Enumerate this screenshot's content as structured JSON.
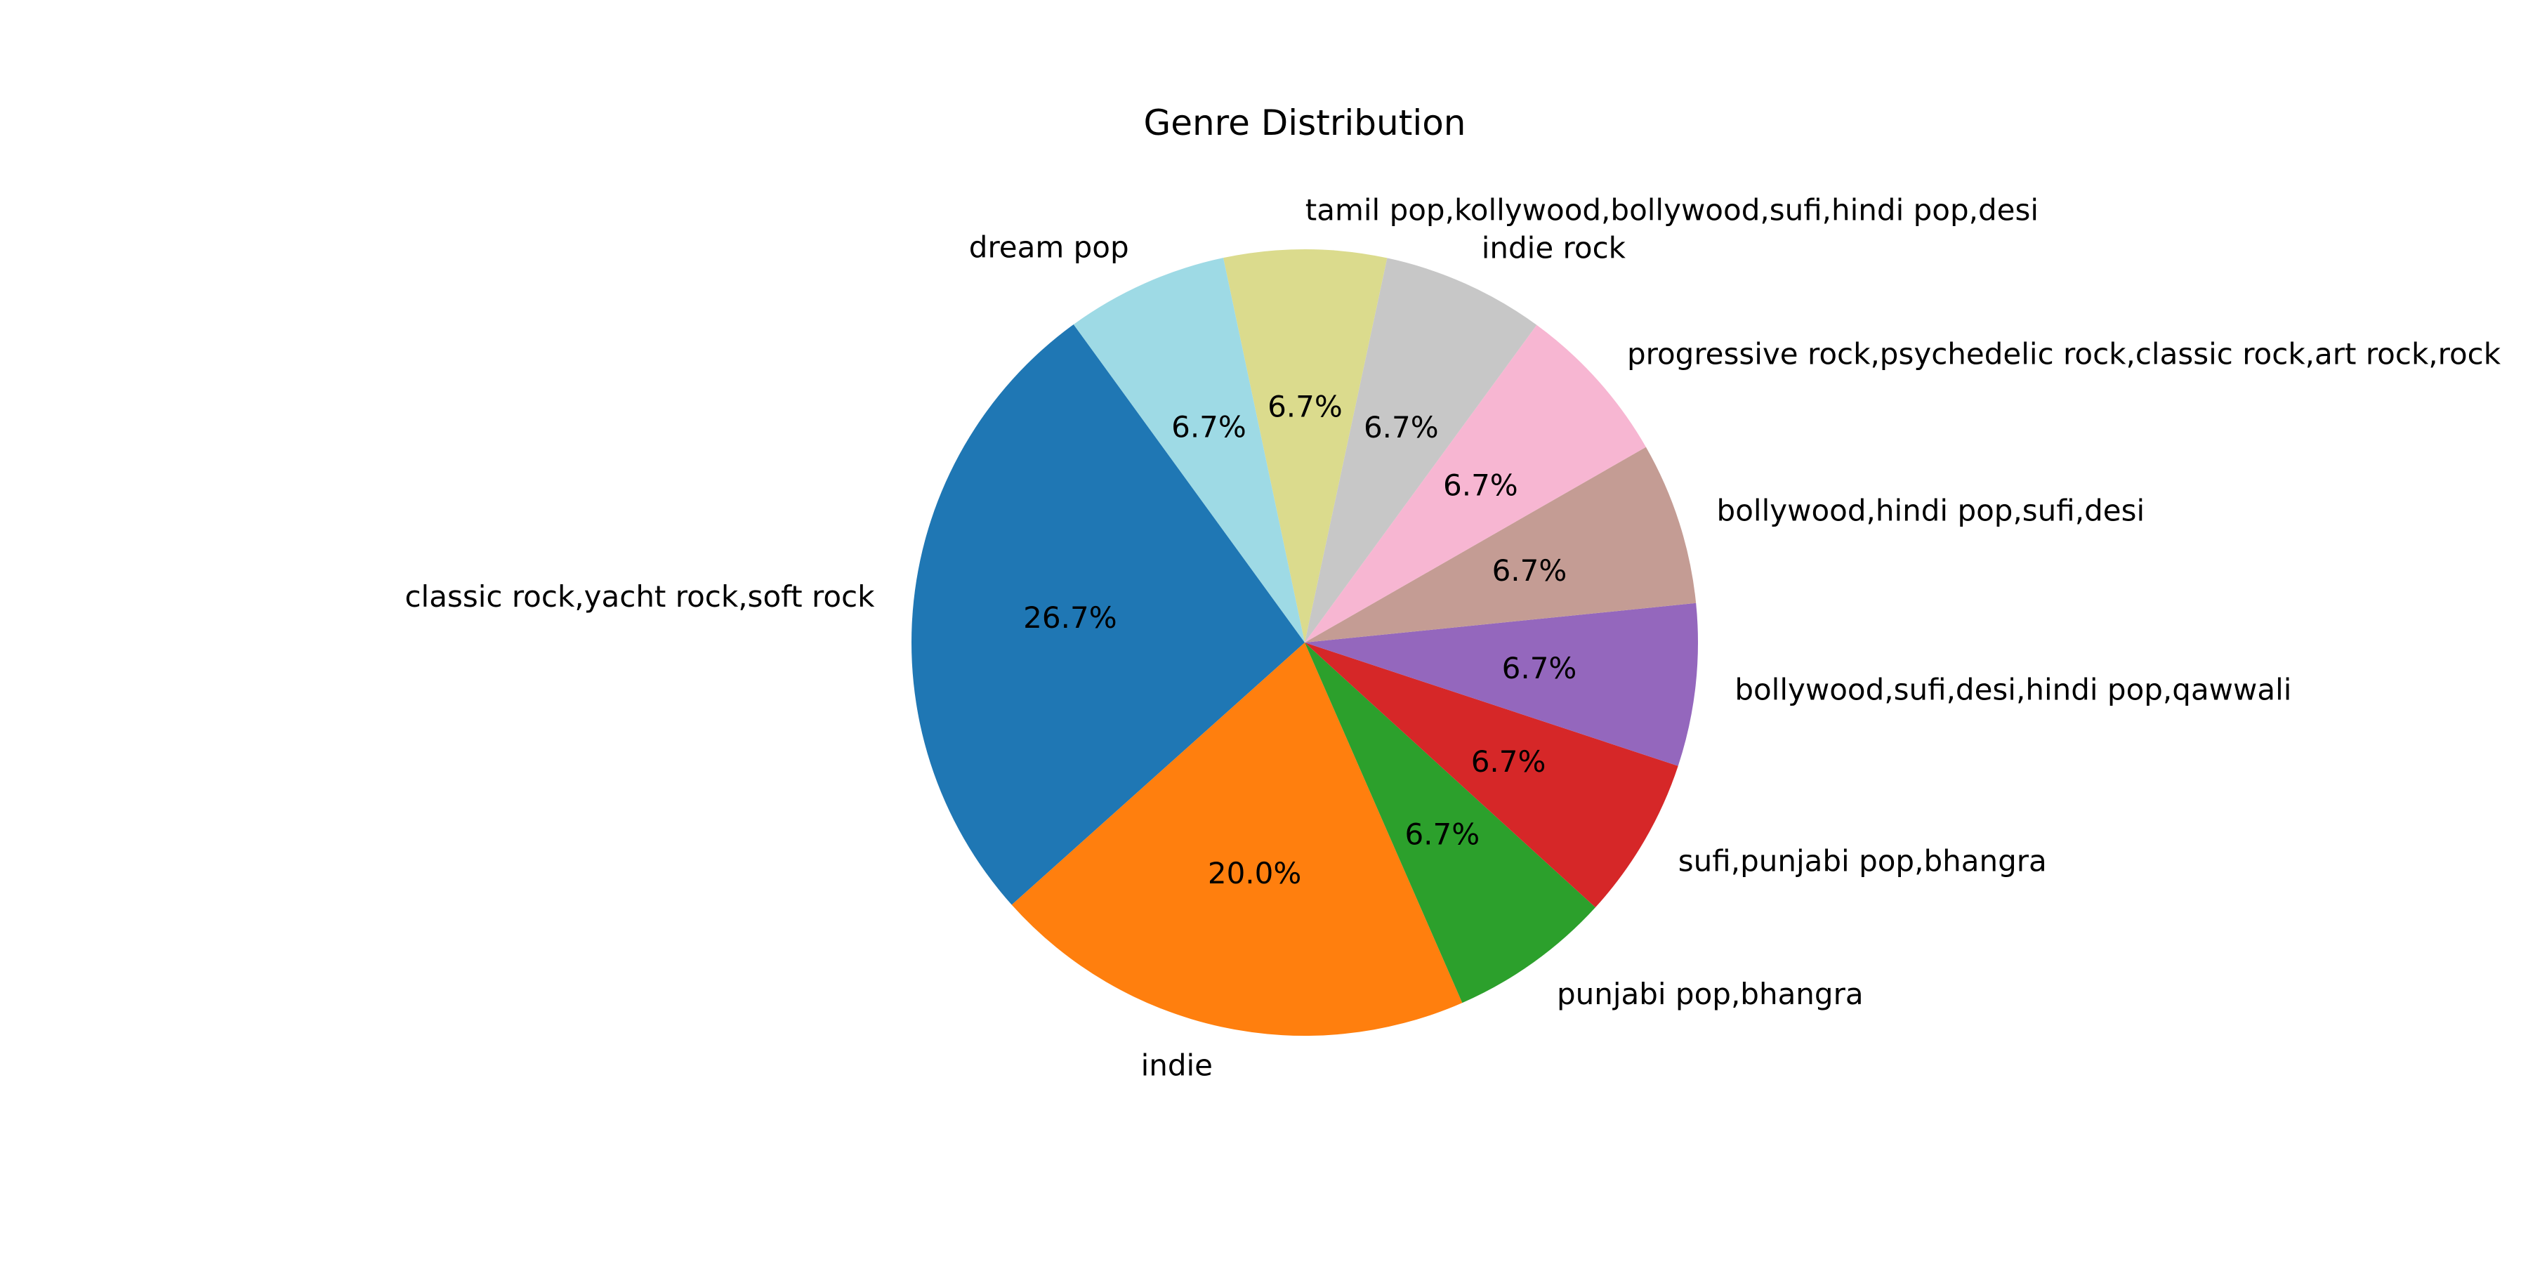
{
  "chart_data": {
    "type": "pie",
    "title": "Genre Distribution",
    "start_angle_deg": 126,
    "direction": "counterclockwise",
    "slices": [
      {
        "label": "classic rock,yacht rock,soft rock",
        "value": 26.7,
        "pct_label": "26.7%",
        "color": "#1f77b4"
      },
      {
        "label": "indie",
        "value": 20.0,
        "pct_label": "20.0%",
        "color": "#ff7f0e"
      },
      {
        "label": "punjabi pop,bhangra",
        "value": 6.7,
        "pct_label": "6.7%",
        "color": "#2ca02c"
      },
      {
        "label": "sufi,punjabi pop,bhangra",
        "value": 6.7,
        "pct_label": "6.7%",
        "color": "#d62728"
      },
      {
        "label": "bollywood,sufi,desi,hindi pop,qawwali",
        "value": 6.7,
        "pct_label": "6.7%",
        "color": "#9467bd"
      },
      {
        "label": "bollywood,hindi pop,sufi,desi",
        "value": 6.7,
        "pct_label": "6.7%",
        "color": "#c49c94"
      },
      {
        "label": "progressive rock,psychedelic rock,classic rock,art rock,rock",
        "value": 6.7,
        "pct_label": "6.7%",
        "color": "#f7b6d2"
      },
      {
        "label": "indie rock",
        "value": 6.7,
        "pct_label": "6.7%",
        "color": "#c7c7c7"
      },
      {
        "label": "tamil pop,kollywood,bollywood,sufi,hindi pop,desi",
        "value": 6.7,
        "pct_label": "6.7%",
        "color": "#dbdb8d"
      },
      {
        "label": "dream pop",
        "value": 6.7,
        "pct_label": "6.7%",
        "color": "#9edae5"
      }
    ]
  }
}
